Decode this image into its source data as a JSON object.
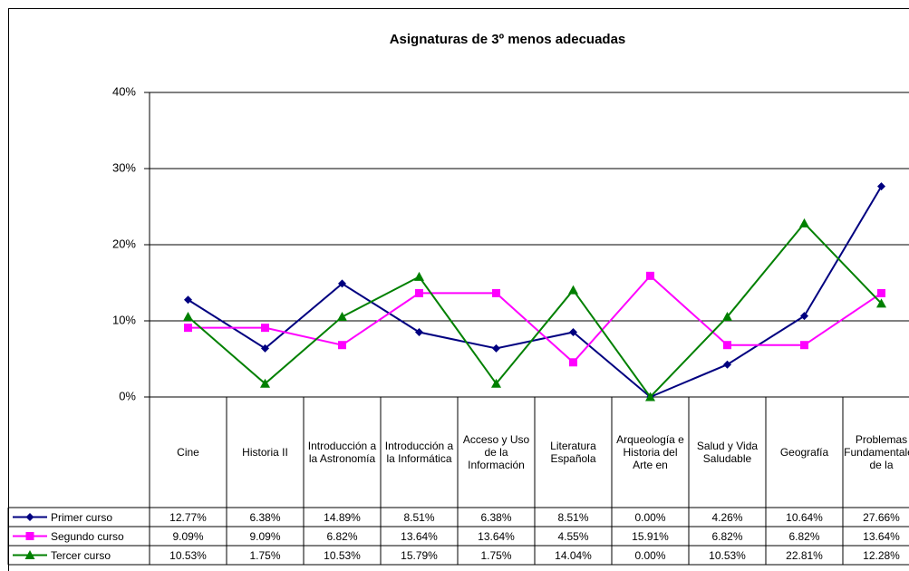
{
  "chart_data": {
    "type": "line",
    "title": "Asignaturas de 3º menos adecuadas",
    "categories": [
      "Cine",
      "Historia II",
      "Introducción a la Astronomía",
      "Introducción a la Informática",
      "Acceso y Uso de la Información",
      "Literatura Española",
      "Arqueología e Historia del Arte en",
      "Salud y Vida Saludable",
      "Geografía",
      "Problemas Fundamentales de la"
    ],
    "series": [
      {
        "name": "Primer curso",
        "color": "#000080",
        "marker": "diamond",
        "values": [
          12.77,
          6.38,
          14.89,
          8.51,
          6.38,
          8.51,
          0.0,
          4.26,
          10.64,
          27.66
        ],
        "value_labels": [
          "12.77%",
          "6.38%",
          "14.89%",
          "8.51%",
          "6.38%",
          "8.51%",
          "0.00%",
          "4.26%",
          "10.64%",
          "27.66%"
        ]
      },
      {
        "name": "Segundo curso",
        "color": "#FF00FF",
        "marker": "square",
        "values": [
          9.09,
          9.09,
          6.82,
          13.64,
          13.64,
          4.55,
          15.91,
          6.82,
          6.82,
          13.64
        ],
        "value_labels": [
          "9.09%",
          "9.09%",
          "6.82%",
          "13.64%",
          "13.64%",
          "4.55%",
          "15.91%",
          "6.82%",
          "6.82%",
          "13.64%"
        ]
      },
      {
        "name": "Tercer curso",
        "color": "#008000",
        "marker": "triangle",
        "values": [
          10.53,
          1.75,
          10.53,
          15.79,
          1.75,
          14.04,
          0.0,
          10.53,
          22.81,
          12.28
        ],
        "value_labels": [
          "10.53%",
          "1.75%",
          "10.53%",
          "15.79%",
          "1.75%",
          "14.04%",
          "0.00%",
          "10.53%",
          "22.81%",
          "12.28%"
        ]
      }
    ],
    "ylim": [
      0,
      40
    ],
    "yticks": [
      {
        "value": 0,
        "label": "0%"
      },
      {
        "value": 10,
        "label": "10%"
      },
      {
        "value": 20,
        "label": "20%"
      },
      {
        "value": 30,
        "label": "30%"
      },
      {
        "value": 40,
        "label": "40%"
      }
    ],
    "grid": true
  }
}
